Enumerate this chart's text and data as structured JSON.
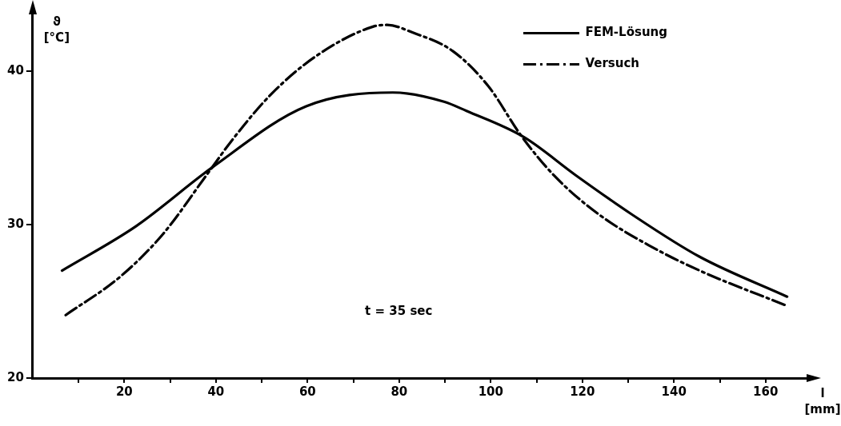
{
  "chart_data": {
    "type": "line",
    "xlabel": "l [mm]",
    "ylabel": "ϑ [°C]",
    "xlim": [
      0,
      170
    ],
    "ylim": [
      20,
      44
    ],
    "xticks": [
      {
        "value": 10,
        "label": null
      },
      20,
      {
        "value": 30,
        "label": null
      },
      40,
      {
        "value": 50,
        "label": null
      },
      60,
      {
        "value": 70,
        "label": null
      },
      80,
      {
        "value": 90,
        "label": null
      },
      100,
      {
        "value": 110,
        "label": null
      },
      120,
      {
        "value": 130,
        "label": null
      },
      140,
      {
        "value": 150,
        "label": null
      },
      160
    ],
    "yticks": [
      20,
      30,
      40
    ],
    "grid": false,
    "legend": "top right",
    "marker": "none",
    "annotations": [
      "t = 35 sec"
    ],
    "series": [
      {
        "name": "FEM-Lösung",
        "color": "#000000",
        "line_style": "solid",
        "x": [
          6.4,
          22.6,
          39.1,
          59.7,
          78.6,
          89.8,
          94.7,
          107.2,
          118.6,
          130.6,
          145.6,
          164.7
        ],
        "values": [
          27.0,
          29.9,
          33.7,
          37.7,
          38.6,
          38.0,
          37.4,
          35.7,
          33.2,
          30.7,
          27.9,
          25.3
        ]
      },
      {
        "name": "Versuch",
        "color": "#000000",
        "line_style": "dashed",
        "x": [
          7.2,
          19.1,
          28.5,
          37.9,
          43.8,
          52.1,
          62.0,
          74.4,
          77.4,
          83.0,
          91.7,
          99.5,
          106.6,
          113.8,
          123.4,
          134.8,
          145.6,
          164.7
        ],
        "values": [
          24.1,
          26.6,
          29.4,
          33.2,
          35.6,
          38.5,
          41.0,
          42.9,
          43.0,
          42.5,
          41.3,
          39.0,
          35.8,
          33.2,
          30.7,
          28.6,
          27.0,
          24.7
        ]
      }
    ]
  }
}
